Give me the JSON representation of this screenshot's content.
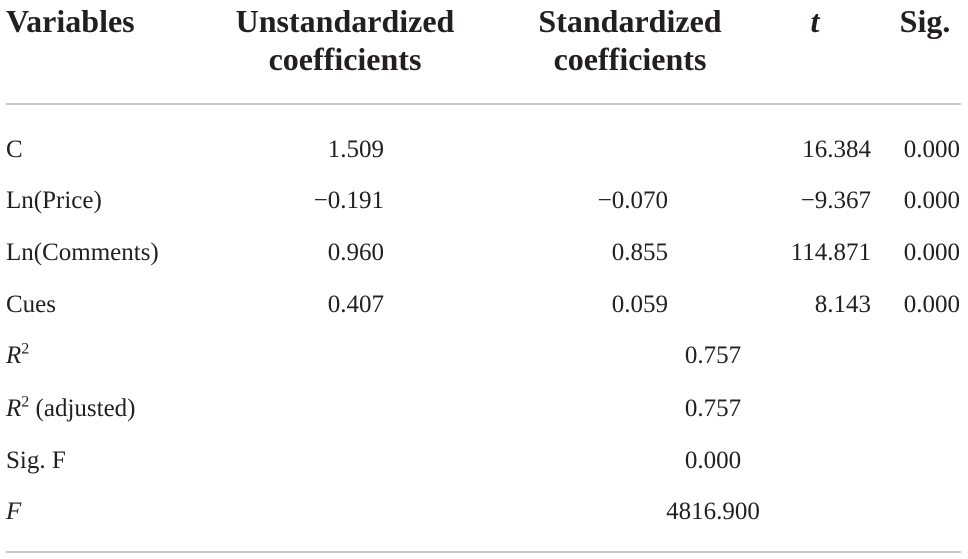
{
  "headers": {
    "variables": "Variables",
    "unstandardized_line1": "Unstandardized",
    "unstandardized_line2": "coefficients",
    "standardized_line1": "Standardized",
    "standardized_line2": "coefficients",
    "t": "t",
    "sig": "Sig."
  },
  "rows": [
    {
      "variable": "C",
      "unstandardized": "1.509",
      "standardized": "",
      "t": "16.384",
      "sig": "0.000"
    },
    {
      "variable": "Ln(Price)",
      "unstandardized": "−0.191",
      "standardized": "−0.070",
      "t": "−9.367",
      "sig": "0.000"
    },
    {
      "variable": "Ln(Comments)",
      "unstandardized": "0.960",
      "standardized": "0.855",
      "t": "114.871",
      "sig": "0.000"
    },
    {
      "variable": "Cues",
      "unstandardized": "0.407",
      "standardized": "0.059",
      "t": "8.143",
      "sig": "0.000"
    }
  ],
  "summary": [
    {
      "label_main": "R",
      "label_sup": "2",
      "label_suffix": "",
      "value": "0.757"
    },
    {
      "label_main": "R",
      "label_sup": "2",
      "label_suffix": " (adjusted)",
      "value": "0.757"
    },
    {
      "label_main": "Sig. F",
      "label_sup": "",
      "label_suffix": "",
      "value": "0.000"
    },
    {
      "label_main": "F",
      "label_sup": "",
      "label_suffix": "",
      "value": "4816.900"
    }
  ]
}
